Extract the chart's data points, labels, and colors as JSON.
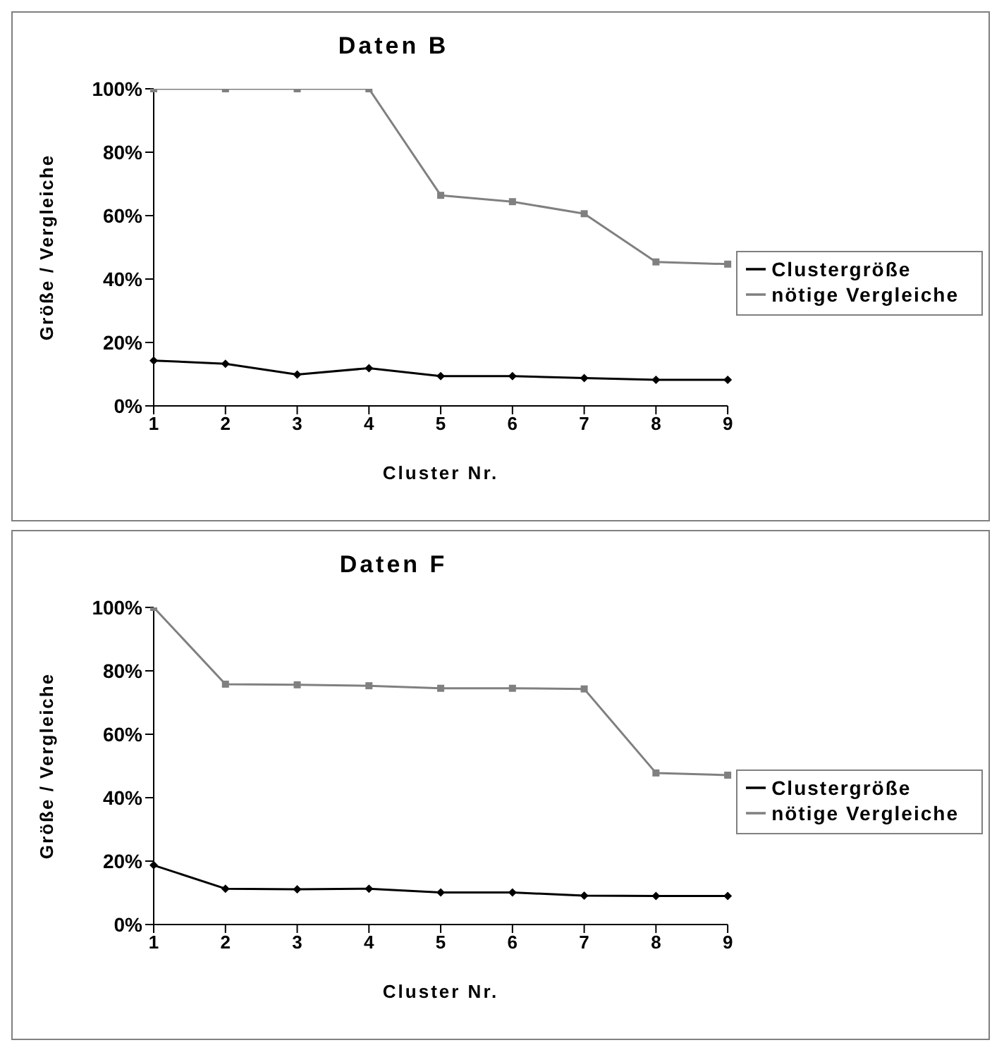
{
  "chart_data": [
    {
      "type": "line",
      "title": "Daten B",
      "xlabel": "Cluster Nr.",
      "ylabel": "Größe / Vergleiche",
      "categories": [
        "1",
        "2",
        "3",
        "4",
        "5",
        "6",
        "7",
        "8",
        "9"
      ],
      "series": [
        {
          "name": "Clustergröße",
          "color": "#000000",
          "marker": "diamond",
          "values": [
            14.3,
            13.3,
            9.9,
            11.9,
            9.4,
            9.4,
            8.8,
            8.2,
            8.2
          ]
        },
        {
          "name": "nötige Vergleiche",
          "color": "#808080",
          "marker": "square",
          "values": [
            100,
            100,
            100,
            100,
            66.4,
            64.4,
            60.6,
            45.4,
            44.7
          ]
        }
      ],
      "ylim": [
        0,
        100
      ],
      "yticks": [
        {
          "value": 0,
          "label": "0%"
        },
        {
          "value": 20,
          "label": "20%"
        },
        {
          "value": 40,
          "label": "40%"
        },
        {
          "value": 60,
          "label": "60%"
        },
        {
          "value": 80,
          "label": "80%"
        },
        {
          "value": 100,
          "label": "100%"
        }
      ],
      "grid": false,
      "legend": "right"
    },
    {
      "type": "line",
      "title": "Daten F",
      "xlabel": "Cluster Nr.",
      "ylabel": "Größe / Vergleiche",
      "categories": [
        "1",
        "2",
        "3",
        "4",
        "5",
        "6",
        "7",
        "8",
        "9"
      ],
      "series": [
        {
          "name": "Clustergröße",
          "color": "#000000",
          "marker": "diamond",
          "values": [
            18.7,
            11.3,
            11.1,
            11.3,
            10.1,
            10.1,
            9.1,
            9.0,
            9.0
          ]
        },
        {
          "name": "nötige Vergleiche",
          "color": "#808080",
          "marker": "square",
          "values": [
            100,
            75.8,
            75.6,
            75.3,
            74.5,
            74.5,
            74.3,
            47.8,
            47.1
          ]
        }
      ],
      "ylim": [
        0,
        100
      ],
      "yticks": [
        {
          "value": 0,
          "label": "0%"
        },
        {
          "value": 20,
          "label": "20%"
        },
        {
          "value": 40,
          "label": "40%"
        },
        {
          "value": 60,
          "label": "60%"
        },
        {
          "value": 80,
          "label": "80%"
        },
        {
          "value": 100,
          "label": "100%"
        }
      ],
      "grid": false,
      "legend": "right"
    }
  ]
}
